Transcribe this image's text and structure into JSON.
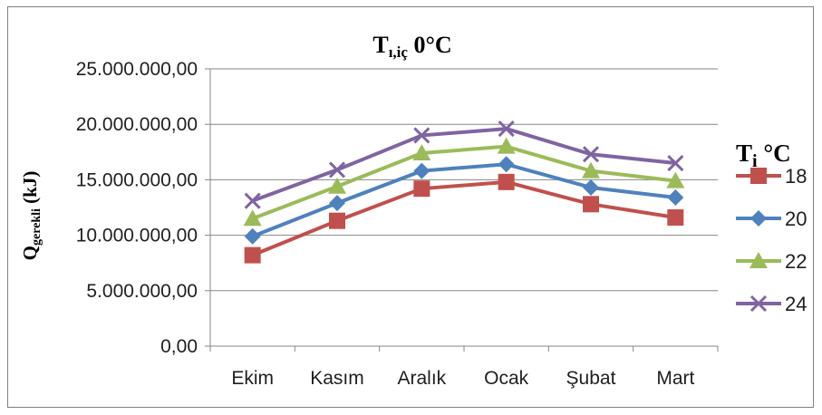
{
  "chart_data": {
    "type": "line",
    "title_main": "T",
    "title_sub": "ı,iç",
    "title_rest": " 0°C",
    "ylabel_main": "Q",
    "ylabel_sub": "gerekli",
    "ylabel_rest": " (kJ)",
    "categories": [
      "Ekim",
      "Kasım",
      "Aralık",
      "Ocak",
      "Şubat",
      "Mart"
    ],
    "ylim": [
      0,
      25000000
    ],
    "yticks": [
      "0,00",
      "5.000.000,00",
      "10.000.000,00",
      "15.000.000,00",
      "20.000.000,00",
      "25.000.000,00"
    ],
    "grid": true,
    "legend_title_main": "T",
    "legend_title_sub": "i",
    "legend_title_rest": " °C",
    "legend_position": "right",
    "series": [
      {
        "name": "18",
        "color": "#c0504d",
        "marker": "square",
        "values": [
          8200000,
          11300000,
          14200000,
          14800000,
          12800000,
          11600000
        ]
      },
      {
        "name": "20",
        "color": "#4f81bd",
        "marker": "diamond",
        "values": [
          9900000,
          12900000,
          15800000,
          16400000,
          14300000,
          13400000
        ]
      },
      {
        "name": "22",
        "color": "#9bbb59",
        "marker": "triangle",
        "values": [
          11500000,
          14400000,
          17400000,
          18000000,
          15800000,
          14900000
        ]
      },
      {
        "name": "24",
        "color": "#8064a2",
        "marker": "x",
        "values": [
          13100000,
          15900000,
          19000000,
          19600000,
          17300000,
          16500000
        ]
      }
    ]
  }
}
